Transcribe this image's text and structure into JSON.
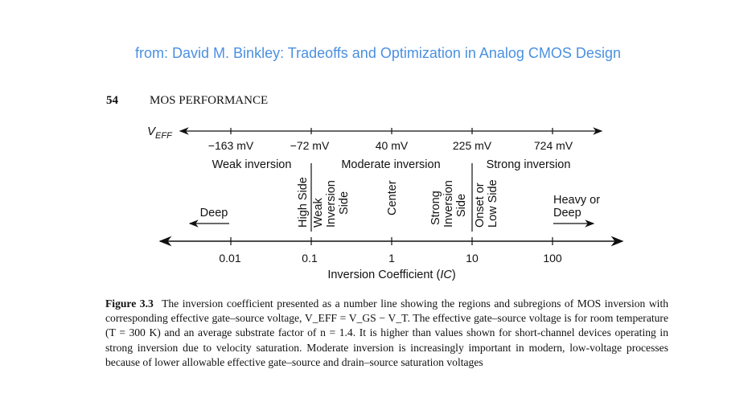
{
  "header": {
    "credit": "from: David M. Binkley: Tradeoffs and Optimization in Analog CMOS Design",
    "credit_color": "#4a90e2",
    "page_number": "54",
    "running_head": "MOS PERFORMANCE"
  },
  "diagram": {
    "veff_label": "V",
    "veff_sub": "EFF",
    "veff_values": [
      "−163 mV",
      "−72 mV",
      "40 mV",
      "225 mV",
      "724 mV"
    ],
    "regions": [
      "Weak inversion",
      "Moderate inversion",
      "Strong inversion"
    ],
    "subregions": {
      "deep": "Deep",
      "high_side_weak_inversion_side": [
        "High Side",
        "Weak",
        "Inversion",
        "Side"
      ],
      "center": "Center",
      "strong_inversion_side": [
        "Strong",
        "Inversion",
        "Side"
      ],
      "onset_or_low_side": [
        "Onset or",
        "Low Side"
      ],
      "heavy_or_deep": [
        "Heavy or",
        "Deep"
      ]
    },
    "ic_values": [
      "0.01",
      "0.1",
      "1",
      "10",
      "100"
    ],
    "axis_title": "Inversion Coefficient (",
    "axis_title_var": "IC",
    "axis_title_end": ")"
  },
  "caption": {
    "figure_label": "Figure 3.3",
    "text": "The inversion coefficient presented as a number line showing the regions and subregions of MOS inversion with corresponding effective gate–source voltage, V_EFF = V_GS − V_T. The effective gate–source voltage is for room temperature (T = 300 K) and an average substrate factor of n = 1.4. It is higher than values shown for short-channel devices operating in strong inversion due to velocity saturation. Moderate inversion is increasingly important in modern, low-voltage processes because of lower allowable effective gate–source and drain–source saturation voltages"
  }
}
